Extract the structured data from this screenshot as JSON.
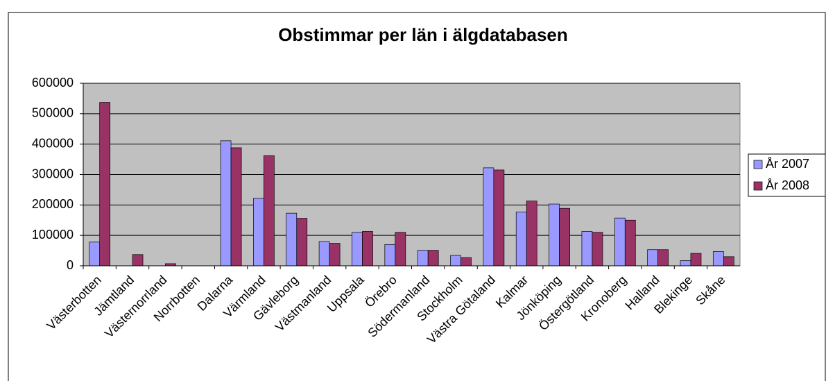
{
  "chart_data": {
    "type": "bar",
    "title": "Obstimmar per län i älgdatabasen",
    "categories": [
      "Västerbotten",
      "Jämtland",
      "Västernorrland",
      "Norrbotten",
      "Dalarna",
      "Värmland",
      "Gävleborg",
      "Västmanland",
      "Uppsala",
      "Örebro",
      "Södermanland",
      "Stockholm",
      "Västra Götaland",
      "Kalmar",
      "Jönköping",
      "Östergötland",
      "Kronoberg",
      "Halland",
      "Blekinge",
      "Skåne"
    ],
    "series": [
      {
        "name": "År 2007",
        "color": "#9999ff",
        "values": [
          78000,
          0,
          0,
          0,
          411000,
          222000,
          173000,
          80000,
          110000,
          70000,
          51000,
          34000,
          322000,
          177000,
          203000,
          113000,
          157000,
          53000,
          17000,
          47000
        ]
      },
      {
        "name": "År 2008",
        "color": "#993366",
        "values": [
          537000,
          37000,
          7000,
          0,
          388000,
          362000,
          156000,
          74000,
          113000,
          110000,
          51000,
          27000,
          315000,
          213000,
          189000,
          110000,
          150000,
          53000,
          41000,
          30000
        ]
      }
    ],
    "ylim": [
      0,
      600000
    ],
    "yticks": [
      0,
      100000,
      200000,
      300000,
      400000,
      500000,
      600000
    ],
    "grid": true,
    "legend": "right"
  }
}
